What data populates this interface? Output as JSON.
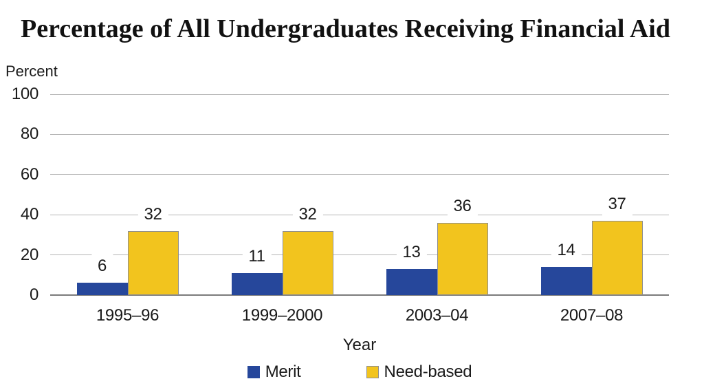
{
  "title": "Percentage of All Undergraduates Receiving Financial Aid",
  "chart_data": {
    "type": "bar",
    "categories": [
      "1995–96",
      "1999–2000",
      "2003–04",
      "2007–08"
    ],
    "series": [
      {
        "name": "Merit",
        "color": "#26479B",
        "border_color": "#26479B",
        "values": [
          6,
          11,
          13,
          14
        ]
      },
      {
        "name": "Need-based",
        "color": "#F2C41E",
        "border_color": "#8E8E8E",
        "values": [
          32,
          32,
          36,
          37
        ]
      }
    ],
    "title": "Percentage of All Undergraduates Receiving Financial Aid",
    "xlabel": "Year",
    "ylabel": "Percent",
    "ylim": [
      0,
      100
    ],
    "yticks": [
      0,
      20,
      40,
      60,
      80,
      100
    ],
    "grid": true,
    "data_labels": true,
    "legend_position": "bottom"
  },
  "colors": {
    "background": "#FFFFFF",
    "gridline": "#B4B4B4",
    "axis_line": "#7A7A7A",
    "text": "#1A1A1A"
  }
}
